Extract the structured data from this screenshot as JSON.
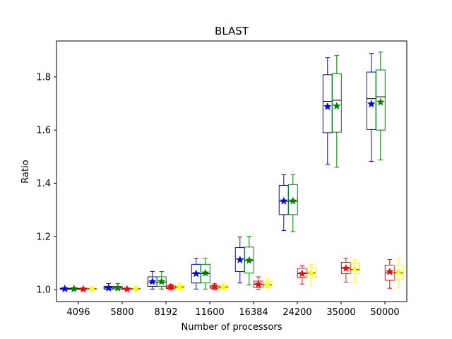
{
  "chart_data": {
    "type": "box",
    "title": "BLAST",
    "xlabel": "Number of processors",
    "ylabel": "Ratio",
    "ylim": [
      0.955,
      1.935
    ],
    "yticks": [
      1.0,
      1.2,
      1.4,
      1.6,
      1.8
    ],
    "ytick_labels": [
      "1.0",
      "1.2",
      "1.4",
      "1.6",
      "1.8"
    ],
    "categories": [
      "4096",
      "5800",
      "8192",
      "11600",
      "16384",
      "24200",
      "35000",
      "50000"
    ],
    "grid": false,
    "legend": "none",
    "series": [
      {
        "color": "#0000ff",
        "boxes": [
          {
            "whislo": 1.0,
            "q1": 1.001,
            "med": 1.003,
            "q3": 1.005,
            "whishi": 1.007,
            "mean": 1.003
          },
          {
            "whislo": 1.0,
            "q1": 1.002,
            "med": 1.006,
            "q3": 1.012,
            "whishi": 1.023,
            "mean": 1.006
          },
          {
            "whislo": 1.002,
            "q1": 1.012,
            "med": 1.028,
            "q3": 1.048,
            "whishi": 1.068,
            "mean": 1.03
          },
          {
            "whislo": 1.002,
            "q1": 1.025,
            "med": 1.06,
            "q3": 1.095,
            "whishi": 1.118,
            "mean": 1.06
          },
          {
            "whislo": 1.025,
            "q1": 1.068,
            "med": 1.115,
            "q3": 1.158,
            "whishi": 1.198,
            "mean": 1.112
          },
          {
            "whislo": 1.222,
            "q1": 1.282,
            "med": 1.332,
            "q3": 1.392,
            "whishi": 1.432,
            "mean": 1.333
          },
          {
            "whislo": 1.472,
            "q1": 1.59,
            "med": 1.708,
            "q3": 1.808,
            "whishi": 1.872,
            "mean": 1.688
          },
          {
            "whislo": 1.482,
            "q1": 1.602,
            "med": 1.718,
            "q3": 1.818,
            "whishi": 1.888,
            "mean": 1.698
          }
        ]
      },
      {
        "color": "#008000",
        "boxes": [
          {
            "whislo": 1.0,
            "q1": 1.001,
            "med": 1.003,
            "q3": 1.005,
            "whishi": 1.007,
            "mean": 1.003
          },
          {
            "whislo": 1.0,
            "q1": 1.002,
            "med": 1.006,
            "q3": 1.012,
            "whishi": 1.023,
            "mean": 1.006
          },
          {
            "whislo": 1.002,
            "q1": 1.012,
            "med": 1.028,
            "q3": 1.048,
            "whishi": 1.068,
            "mean": 1.03
          },
          {
            "whislo": 1.002,
            "q1": 1.025,
            "med": 1.06,
            "q3": 1.095,
            "whishi": 1.118,
            "mean": 1.062
          },
          {
            "whislo": 1.018,
            "q1": 1.062,
            "med": 1.11,
            "q3": 1.16,
            "whishi": 1.2,
            "mean": 1.11
          },
          {
            "whislo": 1.218,
            "q1": 1.282,
            "med": 1.332,
            "q3": 1.395,
            "whishi": 1.432,
            "mean": 1.333
          },
          {
            "whislo": 1.46,
            "q1": 1.592,
            "med": 1.712,
            "q3": 1.812,
            "whishi": 1.88,
            "mean": 1.69
          },
          {
            "whislo": 1.488,
            "q1": 1.6,
            "med": 1.725,
            "q3": 1.826,
            "whishi": 1.893,
            "mean": 1.705
          }
        ]
      },
      {
        "color": "#ff0000",
        "boxes": [
          {
            "whislo": 1.0,
            "q1": 1.001,
            "med": 1.002,
            "q3": 1.004,
            "whishi": 1.006,
            "mean": 1.002
          },
          {
            "whislo": 1.0,
            "q1": 1.001,
            "med": 1.002,
            "q3": 1.004,
            "whishi": 1.006,
            "mean": 1.002
          },
          {
            "whislo": 1.0,
            "q1": 1.004,
            "med": 1.008,
            "q3": 1.014,
            "whishi": 1.02,
            "mean": 1.01
          },
          {
            "whislo": 1.0,
            "q1": 1.005,
            "med": 1.01,
            "q3": 1.016,
            "whishi": 1.022,
            "mean": 1.012
          },
          {
            "whislo": 1.001,
            "q1": 1.008,
            "med": 1.02,
            "q3": 1.032,
            "whishi": 1.048,
            "mean": 1.02
          },
          {
            "whislo": 1.021,
            "q1": 1.046,
            "med": 1.06,
            "q3": 1.08,
            "whishi": 1.09,
            "mean": 1.06
          },
          {
            "whislo": 1.028,
            "q1": 1.06,
            "med": 1.08,
            "q3": 1.102,
            "whishi": 1.118,
            "mean": 1.08
          },
          {
            "whislo": 1.005,
            "q1": 1.035,
            "med": 1.063,
            "q3": 1.092,
            "whishi": 1.113,
            "mean": 1.067
          }
        ]
      },
      {
        "color": "#ffff00",
        "boxes": [
          {
            "whislo": 1.0,
            "q1": 1.001,
            "med": 1.003,
            "q3": 1.006,
            "whishi": 1.008,
            "mean": 1.003
          },
          {
            "whislo": 1.0,
            "q1": 1.001,
            "med": 1.003,
            "q3": 1.006,
            "whishi": 1.008,
            "mean": 1.003
          },
          {
            "whislo": 1.0,
            "q1": 1.005,
            "med": 1.01,
            "q3": 1.016,
            "whishi": 1.024,
            "mean": 1.011
          },
          {
            "whislo": 1.0,
            "q1": 1.005,
            "med": 1.01,
            "q3": 1.016,
            "whishi": 1.024,
            "mean": 1.011
          },
          {
            "whislo": 1.001,
            "q1": 1.008,
            "med": 1.018,
            "q3": 1.03,
            "whishi": 1.042,
            "mean": 1.018
          },
          {
            "whislo": 1.018,
            "q1": 1.045,
            "med": 1.062,
            "q3": 1.082,
            "whishi": 1.095,
            "mean": 1.063
          },
          {
            "whislo": 1.027,
            "q1": 1.06,
            "med": 1.075,
            "q3": 1.1,
            "whishi": 1.112,
            "mean": 1.077
          },
          {
            "whislo": 1.006,
            "q1": 1.04,
            "med": 1.063,
            "q3": 1.092,
            "whishi": 1.118,
            "mean": 1.066
          }
        ]
      }
    ]
  }
}
